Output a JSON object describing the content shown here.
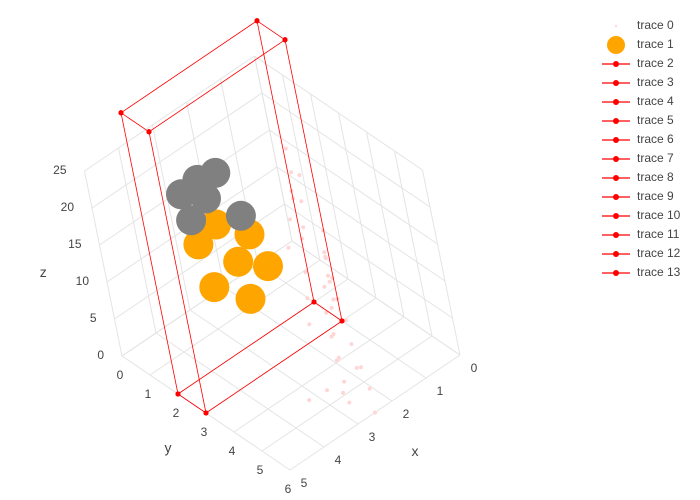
{
  "chart_data": {
    "type": "scatter3d",
    "xlim": [
      0,
      5
    ],
    "ylim": [
      0,
      6
    ],
    "zlim": [
      0,
      25
    ],
    "xticks": [
      0,
      1,
      2,
      3,
      4,
      5
    ],
    "yticks": [
      0,
      1,
      2,
      3,
      4,
      5,
      6
    ],
    "zticks": [
      0,
      5,
      10,
      15,
      20,
      25
    ],
    "x_label": "x",
    "y_label": "y",
    "z_label": "z",
    "series": [
      {
        "name": "trace 0",
        "mode": "markers",
        "color": "#ffd6d6",
        "size": 2,
        "x": [
          0.5,
          0.8,
          1.0,
          1.2,
          1.5,
          1.8,
          2.0,
          2.2,
          2.5,
          2.8,
          3.0,
          3.2,
          0.6,
          0.9,
          1.3,
          1.7,
          2.1,
          2.4,
          2.7,
          3.1,
          0.7,
          1.1,
          1.4,
          1.9,
          2.3,
          2.6,
          2.9,
          0.4,
          0.8,
          1.2,
          1.6,
          2.0,
          2.4,
          2.8,
          1.0,
          1.5,
          2.0,
          0.3,
          0.6,
          1.0
        ],
        "y": [
          2.0,
          2.5,
          3.0,
          3.5,
          4.0,
          4.5,
          5.0,
          5.5,
          6.0,
          5.5,
          5.0,
          4.5,
          2.2,
          2.8,
          3.3,
          3.8,
          4.3,
          4.8,
          5.3,
          5.8,
          2.5,
          3.0,
          3.5,
          4.0,
          4.5,
          5.0,
          5.5,
          1.5,
          2.0,
          2.5,
          3.0,
          3.5,
          4.0,
          4.5,
          2.0,
          2.5,
          3.0,
          1.0,
          1.5,
          2.0
        ],
        "z": [
          2,
          1,
          3,
          2,
          1,
          0,
          2,
          1,
          0,
          1,
          2,
          0,
          6,
          5,
          7,
          6,
          5,
          4,
          3,
          4,
          10,
          9,
          11,
          10,
          9,
          8,
          7,
          14,
          13,
          12,
          13,
          11,
          10,
          9,
          15,
          14,
          13,
          16,
          15,
          14
        ]
      },
      {
        "name": "trace 1",
        "mode": "markers",
        "color": "orange",
        "size": 15,
        "point_colors": [
          "orange",
          "orange",
          "orange",
          "orange",
          "orange",
          "orange",
          "orange",
          "grey",
          "grey",
          "grey",
          "grey",
          "grey",
          "grey"
        ],
        "x": [
          4.5,
          4.5,
          4.5,
          4.5,
          4.5,
          4.5,
          4.5,
          4.5,
          4.5,
          4.5,
          4.5,
          4.5,
          4.5
        ],
        "y": [
          3.6,
          5.0,
          3.3,
          4.8,
          6.0,
          4.2,
          5.5,
          3.2,
          3.0,
          4.0,
          5.3,
          3.8,
          4.6
        ],
        "z": [
          17,
          19,
          22,
          23.5,
          26,
          27,
          29,
          25,
          28,
          30,
          31,
          32,
          35
        ]
      },
      {
        "name": "trace 2",
        "mode": "lines+markers",
        "color": "red",
        "x": [
          5,
          5
        ],
        "y": [
          2,
          3
        ],
        "z": [
          0,
          0
        ]
      },
      {
        "name": "trace 3",
        "mode": "lines+markers",
        "color": "red",
        "x": [
          5,
          1
        ],
        "y": [
          3,
          3
        ],
        "z": [
          0,
          0
        ]
      },
      {
        "name": "trace 4",
        "mode": "lines+markers",
        "color": "red",
        "x": [
          1,
          1
        ],
        "y": [
          3,
          2
        ],
        "z": [
          0,
          0
        ]
      },
      {
        "name": "trace 5",
        "mode": "lines+markers",
        "color": "red",
        "x": [
          1,
          5
        ],
        "y": [
          2,
          2
        ],
        "z": [
          0,
          0
        ]
      },
      {
        "name": "trace 6",
        "mode": "lines+markers",
        "color": "red",
        "x": [
          5,
          5
        ],
        "y": [
          2,
          3
        ],
        "z": [
          38,
          38
        ]
      },
      {
        "name": "trace 7",
        "mode": "lines+markers",
        "color": "red",
        "x": [
          5,
          1
        ],
        "y": [
          3,
          3
        ],
        "z": [
          38,
          38
        ]
      },
      {
        "name": "trace 8",
        "mode": "lines+markers",
        "color": "red",
        "x": [
          1,
          1
        ],
        "y": [
          3,
          2
        ],
        "z": [
          38,
          38
        ]
      },
      {
        "name": "trace 9",
        "mode": "lines+markers",
        "color": "red",
        "x": [
          1,
          5
        ],
        "y": [
          2,
          2
        ],
        "z": [
          38,
          38
        ]
      },
      {
        "name": "trace 10",
        "mode": "lines+markers",
        "color": "red",
        "x": [
          5,
          5
        ],
        "y": [
          2,
          2
        ],
        "z": [
          0,
          38
        ]
      },
      {
        "name": "trace 11",
        "mode": "lines+markers",
        "color": "red",
        "x": [
          5,
          5
        ],
        "y": [
          3,
          3
        ],
        "z": [
          0,
          38
        ]
      },
      {
        "name": "trace 12",
        "mode": "lines+markers",
        "color": "red",
        "x": [
          1,
          1
        ],
        "y": [
          3,
          3
        ],
        "z": [
          0,
          38
        ]
      },
      {
        "name": "trace 13",
        "mode": "lines+markers",
        "color": "red",
        "x": [
          1,
          1
        ],
        "y": [
          2,
          2
        ],
        "z": [
          0,
          38
        ]
      }
    ]
  }
}
